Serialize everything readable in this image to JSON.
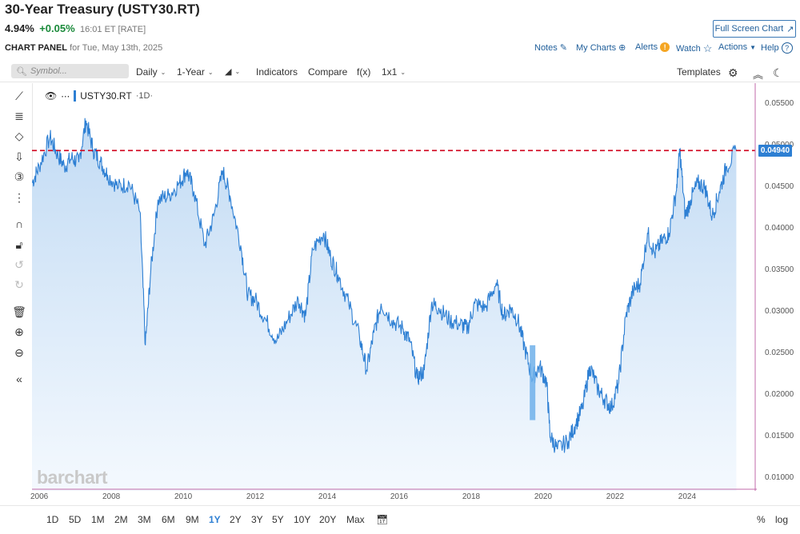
{
  "header": {
    "title": "30-Year Treasury (USTY30.RT)",
    "last": "4.94%",
    "change": "+0.05%",
    "meta": "16:01 ET [RATE]",
    "fullscreen_label": "Full Screen Chart"
  },
  "panel": {
    "label": "CHART PANEL",
    "date": "for Tue, May 13th, 2025",
    "links": {
      "notes": "Notes",
      "mycharts": "My Charts",
      "alerts": "Alerts",
      "watch": "Watch",
      "actions": "Actions",
      "help": "Help"
    }
  },
  "toolbar": {
    "search_placeholder": "Symbol...",
    "interval": "Daily",
    "period": "1-Year",
    "indicators": "Indicators",
    "compare": "Compare",
    "fx": "f(x)",
    "layout": "1x1",
    "templates": "Templates"
  },
  "legend": {
    "symbol": "USTY30.RT",
    "timeframe": "·1D·"
  },
  "price_tag": "0.04940",
  "ranges": [
    "1D",
    "5D",
    "1M",
    "2M",
    "3M",
    "6M",
    "9M",
    "1Y",
    "2Y",
    "3Y",
    "5Y",
    "10Y",
    "20Y",
    "Max"
  ],
  "active_range": "1Y",
  "bottom_right": {
    "pct": "%",
    "log": "log"
  },
  "watermark": "barchart",
  "colors": {
    "line": "#2d7fd3",
    "area_top": "#c9dff5",
    "price_line": "#d0021b",
    "active": "#2d7fd3"
  },
  "chart_data": {
    "type": "area",
    "x": [
      2005.8,
      2006.0,
      2006.3,
      2006.5,
      2006.7,
      2006.9,
      2007.1,
      2007.3,
      2007.5,
      2007.7,
      2007.9,
      2008.2,
      2008.5,
      2008.8,
      2008.95,
      2009.1,
      2009.3,
      2009.6,
      2009.9,
      2010.1,
      2010.3,
      2010.6,
      2010.85,
      2011.1,
      2011.3,
      2011.6,
      2011.8,
      2012.0,
      2012.3,
      2012.6,
      2012.9,
      2013.2,
      2013.4,
      2013.6,
      2013.9,
      2014.1,
      2014.3,
      2014.6,
      2014.9,
      2015.1,
      2015.3,
      2015.5,
      2015.8,
      2016.1,
      2016.3,
      2016.5,
      2016.7,
      2016.9,
      2017.1,
      2017.4,
      2017.7,
      2017.9,
      2018.1,
      2018.4,
      2018.7,
      2018.9,
      2019.1,
      2019.3,
      2019.5,
      2019.7,
      2019.9,
      2020.1,
      2020.2,
      2020.4,
      2020.7,
      2020.9,
      2021.1,
      2021.3,
      2021.5,
      2021.7,
      2021.9,
      2022.1,
      2022.3,
      2022.5,
      2022.7,
      2022.9,
      2023.1,
      2023.3,
      2023.5,
      2023.7,
      2023.8,
      2023.95,
      2024.1,
      2024.3,
      2024.5,
      2024.7,
      2024.9,
      2025.1,
      2025.37
    ],
    "y": [
      0.0455,
      0.0475,
      0.051,
      0.049,
      0.0475,
      0.0485,
      0.048,
      0.053,
      0.0495,
      0.048,
      0.0465,
      0.045,
      0.0455,
      0.042,
      0.026,
      0.035,
      0.0435,
      0.044,
      0.0455,
      0.047,
      0.0445,
      0.038,
      0.0415,
      0.047,
      0.044,
      0.038,
      0.032,
      0.0315,
      0.029,
      0.0265,
      0.029,
      0.0315,
      0.0295,
      0.0375,
      0.0395,
      0.0365,
      0.0345,
      0.031,
      0.027,
      0.023,
      0.0275,
      0.031,
      0.029,
      0.028,
      0.0265,
      0.022,
      0.023,
      0.031,
      0.0305,
      0.029,
      0.0285,
      0.028,
      0.031,
      0.0305,
      0.0335,
      0.0295,
      0.0305,
      0.029,
      0.0255,
      0.022,
      0.0235,
      0.0215,
      0.015,
      0.0135,
      0.0145,
      0.0165,
      0.0185,
      0.0235,
      0.021,
      0.0195,
      0.0185,
      0.0215,
      0.0295,
      0.0325,
      0.0335,
      0.0395,
      0.037,
      0.0385,
      0.0395,
      0.0445,
      0.0495,
      0.0415,
      0.0435,
      0.0455,
      0.045,
      0.0415,
      0.0445,
      0.0475,
      0.0494
    ],
    "ylim": [
      0.0085,
      0.0575
    ],
    "xlim": [
      2005.8,
      2025.45
    ],
    "yticks": [
      "0.05500",
      "0.05000",
      "0.04500",
      "0.04000",
      "0.03500",
      "0.03000",
      "0.02500",
      "0.02000",
      "0.01500",
      "0.01000"
    ],
    "ytick_values": [
      0.055,
      0.05,
      0.045,
      0.04,
      0.035,
      0.03,
      0.025,
      0.02,
      0.015,
      0.01
    ],
    "xticks": [
      "2006",
      "2008",
      "2010",
      "2012",
      "2014",
      "2016",
      "2018",
      "2020",
      "2022",
      "2024"
    ],
    "xtick_values": [
      2006,
      2008,
      2010,
      2012,
      2014,
      2016,
      2018,
      2020,
      2022,
      2024
    ],
    "last_value": 0.0494,
    "grid": false
  }
}
